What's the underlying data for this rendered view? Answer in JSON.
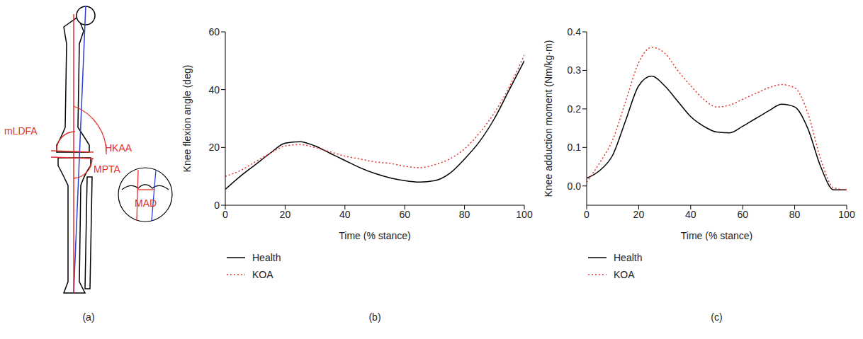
{
  "diagram": {
    "panel": "(a)",
    "annotations": [
      "mLDFA",
      "HKAA",
      "MPTA",
      "MAD"
    ]
  },
  "chart_data": [
    {
      "type": "line",
      "panel": "(b)",
      "x_label": "Time (% stance)",
      "y_label": "Knee flexion angle (deg)",
      "x": [
        0,
        5,
        10,
        15,
        20,
        25,
        30,
        35,
        40,
        45,
        50,
        55,
        60,
        65,
        70,
        75,
        80,
        85,
        90,
        95,
        100
      ],
      "xlim": [
        0,
        100
      ],
      "xticks": [
        0,
        20,
        40,
        60,
        80,
        100
      ],
      "ylim": [
        0,
        60
      ],
      "yticks": [
        0,
        20,
        40,
        60
      ],
      "legend": "bottom",
      "series": [
        {
          "name": "Health",
          "color": "#000000",
          "line_style": "solid",
          "values": [
            5.5,
            10,
            14,
            18,
            21.5,
            22,
            20.5,
            18,
            15.5,
            13,
            11,
            9.5,
            8.5,
            8,
            8.5,
            11,
            16,
            22,
            30,
            40,
            50
          ]
        },
        {
          "name": "KOA",
          "color": "#e0312a",
          "line_style": "dotted",
          "values": [
            10,
            12,
            15,
            18,
            20.5,
            21,
            20,
            18.5,
            17,
            16,
            15,
            14.5,
            13.5,
            13,
            14,
            16,
            19.5,
            25,
            32,
            41,
            52
          ]
        }
      ]
    },
    {
      "type": "line",
      "panel": "(c)",
      "x_label": "Time (% stance)",
      "y_label": "Knee adduction moment (Nm/kg·m)",
      "x": [
        0,
        5,
        10,
        15,
        20,
        25,
        30,
        35,
        40,
        45,
        50,
        55,
        60,
        65,
        70,
        75,
        80,
        85,
        90,
        95,
        100
      ],
      "xlim": [
        0,
        100
      ],
      "xticks": [
        0,
        20,
        40,
        60,
        80,
        100
      ],
      "ylim": [
        -0.05,
        0.4
      ],
      "yticks": [
        {
          "value": 0,
          "label": "0.0"
        },
        0.1,
        0.2,
        0.3,
        0.4
      ],
      "legend": "bottom",
      "series": [
        {
          "name": "Health",
          "color": "#000000",
          "line_style": "solid",
          "values": [
            0.02,
            0.04,
            0.08,
            0.17,
            0.26,
            0.285,
            0.26,
            0.22,
            0.18,
            0.155,
            0.14,
            0.138,
            0.155,
            0.175,
            0.195,
            0.212,
            0.205,
            0.15,
            0.05,
            -0.01,
            -0.01
          ]
        },
        {
          "name": "KOA",
          "color": "#e0312a",
          "line_style": "dotted",
          "values": [
            0.01,
            0.06,
            0.12,
            0.22,
            0.32,
            0.36,
            0.345,
            0.3,
            0.26,
            0.225,
            0.205,
            0.21,
            0.225,
            0.24,
            0.255,
            0.263,
            0.255,
            0.19,
            0.07,
            -0.005,
            -0.01
          ]
        }
      ]
    }
  ]
}
